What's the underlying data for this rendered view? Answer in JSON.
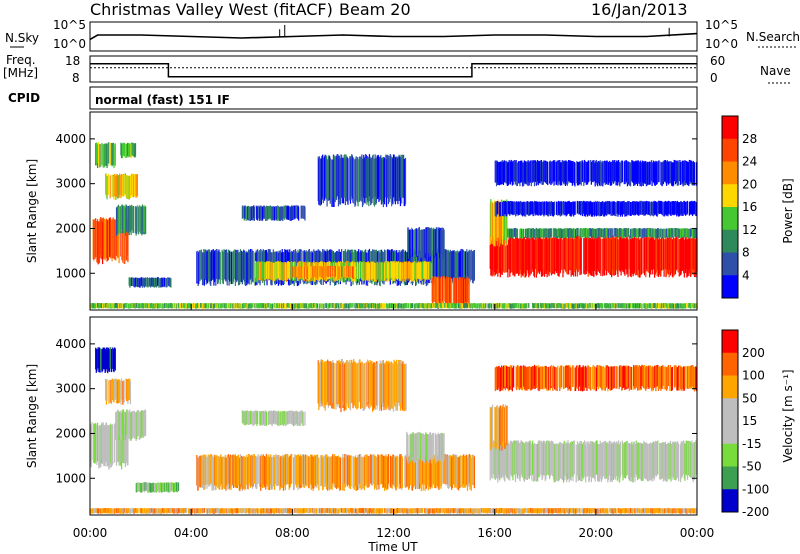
{
  "header": {
    "site": "Christmas Valley West (fitACF)",
    "beam": "Beam 20",
    "date": "16/Jan/2013"
  },
  "labels": {
    "nsky": "N.Sky",
    "nsearch": "N.Search",
    "freq": "Freq.",
    "mhz": "[MHz]",
    "nave": "Nave",
    "cpid": "CPID",
    "cpid_value": "normal (fast) 151 IF"
  },
  "colors": {
    "power": [
      "#0000ff",
      "#2e50aa",
      "#2e8a5a",
      "#46c832",
      "#ffd700",
      "#ff8c00",
      "#ff4500",
      "#ff0000"
    ],
    "velocity": [
      "#0000cd",
      "#3ca050",
      "#78dc3c",
      "#bebebe",
      "#bebebe",
      "#ffa500",
      "#ff6400",
      "#ff0000"
    ],
    "trace": "#000000"
  },
  "chart_data": [
    {
      "type": "line",
      "panel": "noise",
      "left_ticks": [
        "10^5",
        "10^0"
      ],
      "right_ticks": [
        "10^5",
        "10^0"
      ],
      "left_label": "N.Sky",
      "right_label": "N.Search",
      "series": [
        {
          "x": [
            0,
            0.3,
            2,
            4,
            6,
            8,
            10,
            12,
            14,
            16,
            18,
            20,
            22,
            24
          ],
          "y": [
            0.4,
            0.55,
            0.55,
            0.5,
            0.45,
            0.5,
            0.55,
            0.5,
            0.5,
            0.55,
            0.55,
            0.5,
            0.5,
            0.6
          ]
        }
      ]
    },
    {
      "type": "line",
      "panel": "frequency",
      "ylabel": "Freq. [MHz]",
      "y_ticks": [
        18,
        8
      ],
      "y2_ticks": [
        60,
        0
      ],
      "y2_label": "Nave",
      "freq_steps": [
        {
          "from": 0,
          "to": 3.1,
          "value": 15
        },
        {
          "from": 3.1,
          "to": 15.1,
          "value": 10
        },
        {
          "from": 15.1,
          "to": 24,
          "value": 15
        }
      ],
      "nave_level": 0.55
    },
    {
      "type": "heatmap",
      "panel": "power",
      "ylabel": "Slant Range [km]",
      "yticks": [
        1000,
        2000,
        3000,
        4000
      ],
      "ylim": [
        180,
        4600
      ],
      "xlim": [
        0,
        24
      ],
      "colorbar_label": "Power [dB]",
      "colorbar_ticks": [
        4,
        8,
        12,
        16,
        20,
        24,
        28
      ],
      "bands": [
        {
          "x0": 0.1,
          "x1": 1.5,
          "r0": 1300,
          "r1": 2200,
          "level": 6
        },
        {
          "x0": 1.0,
          "x1": 2.2,
          "r0": 1900,
          "r1": 2500,
          "level": 2
        },
        {
          "x0": 0.2,
          "x1": 1.0,
          "r0": 3400,
          "r1": 3900,
          "level": 3
        },
        {
          "x0": 1.2,
          "x1": 1.8,
          "r0": 3600,
          "r1": 3900,
          "level": 3
        },
        {
          "x0": 0.6,
          "x1": 1.9,
          "r0": 2700,
          "r1": 3200,
          "level": 4
        },
        {
          "x0": 1.5,
          "x1": 3.2,
          "r0": 700,
          "r1": 900,
          "level": 1
        },
        {
          "x0": 4.2,
          "x1": 15.2,
          "r0": 800,
          "r1": 1500,
          "level": 1
        },
        {
          "x0": 6.5,
          "x1": 13.5,
          "r0": 850,
          "r1": 1250,
          "level": 4
        },
        {
          "x0": 8.0,
          "x1": 10.5,
          "r0": 900,
          "r1": 1150,
          "level": 5
        },
        {
          "x0": 6.0,
          "x1": 8.5,
          "r0": 2200,
          "r1": 2500,
          "level": 1
        },
        {
          "x0": 9.0,
          "x1": 12.5,
          "r0": 2600,
          "r1": 3600,
          "level": 1
        },
        {
          "x0": 12.5,
          "x1": 14.0,
          "r0": 1400,
          "r1": 2000,
          "level": 1
        },
        {
          "x0": 13.5,
          "x1": 15.0,
          "r0": 300,
          "r1": 900,
          "level": 6
        },
        {
          "x0": 15.8,
          "x1": 24.0,
          "r0": 1000,
          "r1": 1800,
          "level": 7
        },
        {
          "x0": 15.8,
          "x1": 16.5,
          "r0": 1700,
          "r1": 2600,
          "level": 4
        },
        {
          "x0": 16.5,
          "x1": 24.0,
          "r0": 1800,
          "r1": 2000,
          "level": 2
        },
        {
          "x0": 16.0,
          "x1": 24.0,
          "r0": 2300,
          "r1": 2600,
          "level": 0
        },
        {
          "x0": 16.0,
          "x1": 24.0,
          "r0": 3000,
          "r1": 3500,
          "level": 0
        },
        {
          "x0": 0.0,
          "x1": 24.0,
          "r0": 220,
          "r1": 330,
          "level": 3
        }
      ]
    },
    {
      "type": "heatmap",
      "panel": "velocity",
      "ylabel": "Slant Range [km]",
      "yticks": [
        1000,
        2000,
        3000,
        4000
      ],
      "ylim": [
        180,
        4600
      ],
      "xlim": [
        0,
        24
      ],
      "xlabel": "Time UT",
      "xticks": [
        "00:00",
        "04:00",
        "08:00",
        "12:00",
        "16:00",
        "20:00",
        "00:00"
      ],
      "colorbar_label": "Velocity [m s⁻¹]",
      "colorbar_ticks": [
        200,
        100,
        50,
        15,
        -15,
        -50,
        -100,
        -200
      ],
      "bands": [
        {
          "x0": 0.0,
          "x1": 1.5,
          "r0": 1300,
          "r1": 2200,
          "level": 3
        },
        {
          "x0": 1.0,
          "x1": 2.2,
          "r0": 1900,
          "r1": 2500,
          "level": 3
        },
        {
          "x0": 0.2,
          "x1": 1.0,
          "r0": 3400,
          "r1": 3900,
          "level": 0
        },
        {
          "x0": 0.6,
          "x1": 1.6,
          "r0": 2700,
          "r1": 3200,
          "level": 5
        },
        {
          "x0": 1.8,
          "x1": 3.5,
          "r0": 700,
          "r1": 900,
          "level": 2
        },
        {
          "x0": 4.2,
          "x1": 15.2,
          "r0": 800,
          "r1": 1500,
          "level": 5
        },
        {
          "x0": 6.0,
          "x1": 8.5,
          "r0": 2200,
          "r1": 2500,
          "level": 3
        },
        {
          "x0": 9.0,
          "x1": 12.5,
          "r0": 2600,
          "r1": 3600,
          "level": 5
        },
        {
          "x0": 12.5,
          "x1": 14.0,
          "r0": 1400,
          "r1": 2000,
          "level": 3
        },
        {
          "x0": 15.8,
          "x1": 24.0,
          "r0": 1000,
          "r1": 1800,
          "level": 3
        },
        {
          "x0": 15.8,
          "x1": 16.5,
          "r0": 1700,
          "r1": 2600,
          "level": 5
        },
        {
          "x0": 16.0,
          "x1": 24.0,
          "r0": 3000,
          "r1": 3500,
          "level": 6
        },
        {
          "x0": 0.0,
          "x1": 24.0,
          "r0": 220,
          "r1": 330,
          "level": 5
        }
      ]
    }
  ]
}
